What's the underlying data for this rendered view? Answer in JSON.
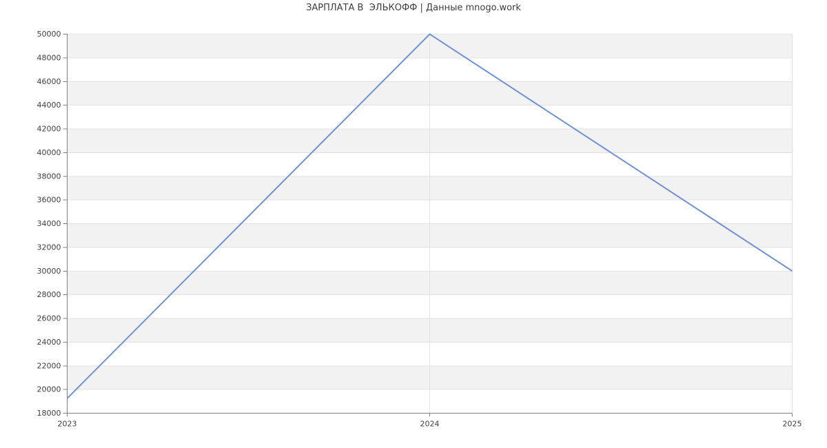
{
  "page": {
    "title": "ЗАРПЛАТА В  ЭЛЬКОФФ | Данные mnogo.work"
  },
  "chart_data": {
    "type": "line",
    "title": "ЗАРПЛАТА В  ЭЛЬКОФФ | Данные mnogo.work",
    "categories": [
      "2023",
      "2024",
      "2025"
    ],
    "values": [
      19250,
      50000,
      30000
    ],
    "xlabel": "",
    "ylabel": "",
    "ylim": [
      18000,
      50000
    ],
    "y_tick_step": 2000,
    "y_ticks": [
      18000,
      20000,
      22000,
      24000,
      26000,
      28000,
      30000,
      32000,
      34000,
      36000,
      38000,
      40000,
      42000,
      44000,
      46000,
      48000,
      50000
    ],
    "grid": "horizontal gridlines at every y tick, vertical gridlines at each year",
    "plot_bands": "alternating horizontal stripes every 2000 units, gray stripe at top (48000-50000)",
    "legend_position": "none",
    "markers": "none",
    "colors": {
      "line": "#6e91dc",
      "band_fill": "#f2f2f2",
      "gridline": "#e2e2e2",
      "axis": "#808080",
      "label_text": "#404040",
      "title_text": "#3d3d3d",
      "background": "#ffffff"
    }
  }
}
